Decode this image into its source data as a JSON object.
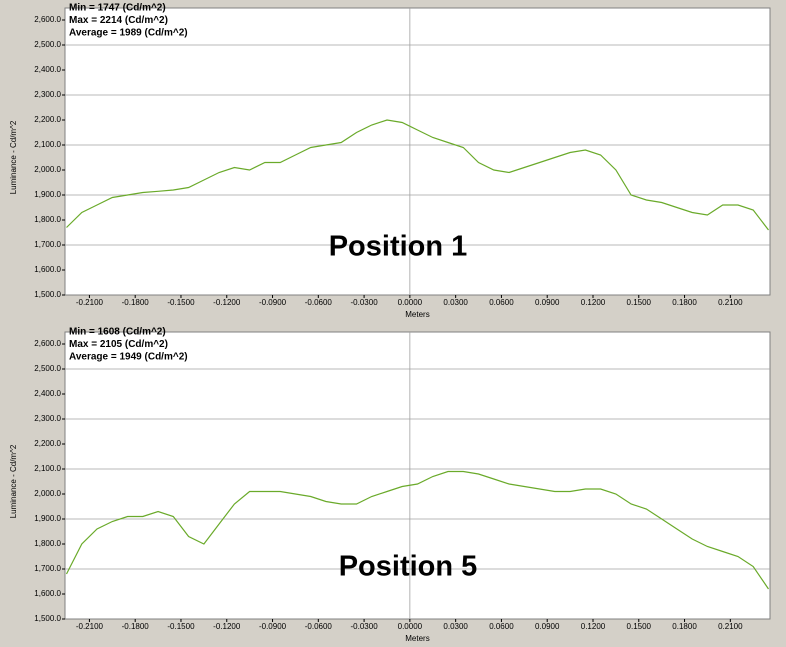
{
  "chart_data": [
    {
      "type": "line",
      "info": [
        "Min = 1747 (Cd/m^2)",
        "Max = 2214 (Cd/m^2)",
        "Average = 1989 (Cd/m^2)"
      ],
      "annotation": "Position 1",
      "x_label": "Meters",
      "y_label": "Luminance - Cd/m^2",
      "x": [
        -0.225,
        -0.215,
        -0.205,
        -0.195,
        -0.185,
        -0.175,
        -0.165,
        -0.155,
        -0.145,
        -0.135,
        -0.125,
        -0.115,
        -0.105,
        -0.095,
        -0.085,
        -0.075,
        -0.065,
        -0.055,
        -0.045,
        -0.035,
        -0.025,
        -0.015,
        -0.005,
        0.005,
        0.015,
        0.025,
        0.035,
        0.045,
        0.055,
        0.065,
        0.075,
        0.085,
        0.095,
        0.105,
        0.115,
        0.125,
        0.135,
        0.145,
        0.155,
        0.165,
        0.175,
        0.185,
        0.195,
        0.205,
        0.215,
        0.225,
        0.235
      ],
      "series": [
        {
          "color": "#6aaa2a",
          "values": [
            1770,
            1830,
            1860,
            1890,
            1900,
            1910,
            1915,
            1920,
            1930,
            1960,
            1990,
            2010,
            2000,
            2030,
            2030,
            2060,
            2090,
            2100,
            2110,
            2150,
            2180,
            2200,
            2190,
            2160,
            2130,
            2110,
            2090,
            2030,
            2000,
            1990,
            2010,
            2030,
            2050,
            2070,
            2080,
            2060,
            2000,
            1900,
            1880,
            1870,
            1850,
            1830,
            1820,
            1860,
            1860,
            1840,
            1760
          ]
        }
      ],
      "xlim": [
        -0.226,
        0.236
      ],
      "ylim": [
        1500,
        2600
      ],
      "xticks": [
        {
          "value": -0.21,
          "label": "-0.2100"
        },
        {
          "value": -0.18,
          "label": "-0.1800"
        },
        {
          "value": -0.15,
          "label": "-0.1500"
        },
        {
          "value": -0.12,
          "label": "-0.1200"
        },
        {
          "value": -0.09,
          "label": "-0.0900"
        },
        {
          "value": -0.06,
          "label": "-0.0600"
        },
        {
          "value": -0.03,
          "label": "-0.0300"
        },
        {
          "value": 0,
          "label": "0.0000"
        },
        {
          "value": 0.03,
          "label": "0.0300"
        },
        {
          "value": 0.06,
          "label": "0.0600"
        },
        {
          "value": 0.09,
          "label": "0.0900"
        },
        {
          "value": 0.12,
          "label": "0.1200"
        },
        {
          "value": 0.15,
          "label": "0.1500"
        },
        {
          "value": 0.18,
          "label": "0.1800"
        },
        {
          "value": 0.21,
          "label": "0.2100"
        }
      ],
      "yticks": [
        {
          "value": 1500,
          "label": "1,500.0"
        },
        {
          "value": 1600,
          "label": "1,600.0"
        },
        {
          "value": 1700,
          "label": "1,700.0"
        },
        {
          "value": 1800,
          "label": "1,800.0"
        },
        {
          "value": 1900,
          "label": "1,900.0"
        },
        {
          "value": 2000,
          "label": "2,000.0"
        },
        {
          "value": 2100,
          "label": "2,100.0"
        },
        {
          "value": 2200,
          "label": "2,200.0"
        },
        {
          "value": 2300,
          "label": "2,300.0"
        },
        {
          "value": 2400,
          "label": "2,400.0"
        },
        {
          "value": 2500,
          "label": "2,500.0"
        },
        {
          "value": 2600,
          "label": "2,600.0"
        }
      ],
      "grid": true
    },
    {
      "type": "line",
      "info": [
        "Min = 1608 (Cd/m^2)",
        "Max = 2105 (Cd/m^2)",
        "Average = 1949 (Cd/m^2)"
      ],
      "annotation": "Position 5",
      "x_label": "Meters",
      "y_label": "Luminance - Cd/m^2",
      "x": [
        -0.225,
        -0.215,
        -0.205,
        -0.195,
        -0.185,
        -0.175,
        -0.165,
        -0.155,
        -0.145,
        -0.135,
        -0.125,
        -0.115,
        -0.105,
        -0.095,
        -0.085,
        -0.075,
        -0.065,
        -0.055,
        -0.045,
        -0.035,
        -0.025,
        -0.015,
        -0.005,
        0.005,
        0.015,
        0.025,
        0.035,
        0.045,
        0.055,
        0.065,
        0.075,
        0.085,
        0.095,
        0.105,
        0.115,
        0.125,
        0.135,
        0.145,
        0.155,
        0.165,
        0.175,
        0.185,
        0.195,
        0.205,
        0.215,
        0.225,
        0.235
      ],
      "series": [
        {
          "color": "#6aaa2a",
          "values": [
            1680,
            1800,
            1860,
            1890,
            1910,
            1910,
            1930,
            1910,
            1830,
            1800,
            1880,
            1960,
            2010,
            2010,
            2010,
            2000,
            1990,
            1970,
            1960,
            1960,
            1990,
            2010,
            2030,
            2040,
            2070,
            2090,
            2090,
            2080,
            2060,
            2040,
            2030,
            2020,
            2010,
            2010,
            2020,
            2020,
            2000,
            1960,
            1940,
            1900,
            1860,
            1820,
            1790,
            1770,
            1750,
            1710,
            1620
          ]
        }
      ],
      "xlim": [
        -0.226,
        0.236
      ],
      "ylim": [
        1500,
        2600
      ],
      "xticks": [
        {
          "value": -0.21,
          "label": "-0.2100"
        },
        {
          "value": -0.18,
          "label": "-0.1800"
        },
        {
          "value": -0.15,
          "label": "-0.1500"
        },
        {
          "value": -0.12,
          "label": "-0.1200"
        },
        {
          "value": -0.09,
          "label": "-0.0900"
        },
        {
          "value": -0.06,
          "label": "-0.0600"
        },
        {
          "value": -0.03,
          "label": "-0.0300"
        },
        {
          "value": 0,
          "label": "0.0000"
        },
        {
          "value": 0.03,
          "label": "0.0300"
        },
        {
          "value": 0.06,
          "label": "0.0600"
        },
        {
          "value": 0.09,
          "label": "0.0900"
        },
        {
          "value": 0.12,
          "label": "0.1200"
        },
        {
          "value": 0.15,
          "label": "0.1500"
        },
        {
          "value": 0.18,
          "label": "0.1800"
        },
        {
          "value": 0.21,
          "label": "0.2100"
        }
      ],
      "yticks": [
        {
          "value": 1500,
          "label": "1,500.0"
        },
        {
          "value": 1600,
          "label": "1,600.0"
        },
        {
          "value": 1700,
          "label": "1,700.0"
        },
        {
          "value": 1800,
          "label": "1,800.0"
        },
        {
          "value": 1900,
          "label": "1,900.0"
        },
        {
          "value": 2000,
          "label": "2,000.0"
        },
        {
          "value": 2100,
          "label": "2,100.0"
        },
        {
          "value": 2200,
          "label": "2,200.0"
        },
        {
          "value": 2300,
          "label": "2,300.0"
        },
        {
          "value": 2400,
          "label": "2,400.0"
        },
        {
          "value": 2500,
          "label": "2,500.0"
        },
        {
          "value": 2600,
          "label": "2,600.0"
        }
      ],
      "grid": true
    }
  ]
}
